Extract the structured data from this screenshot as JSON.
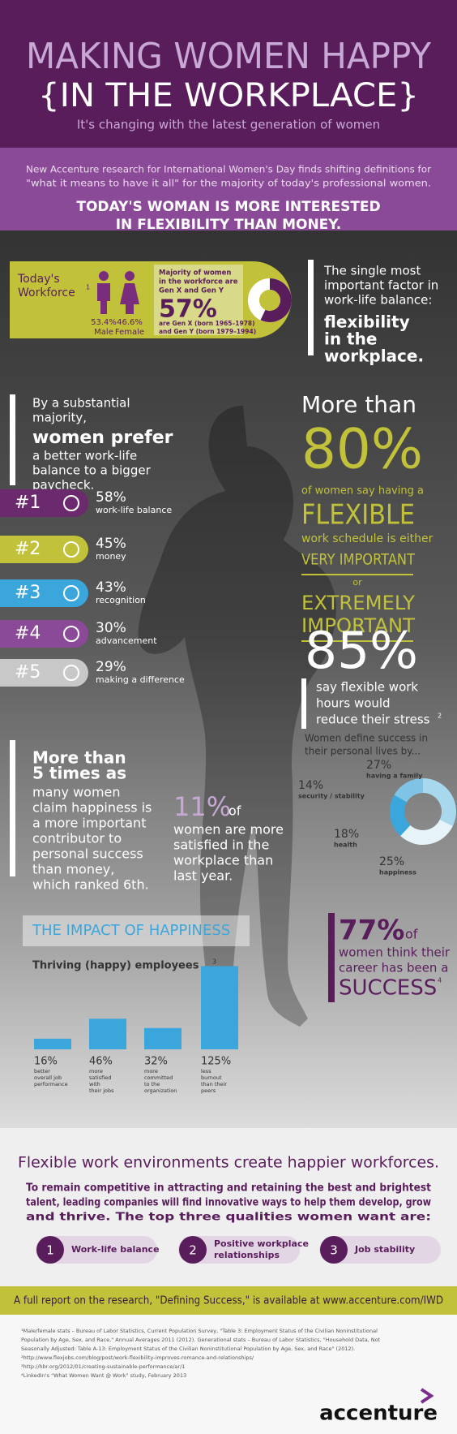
{
  "header": {
    "title": "MAKING WOMEN HAPPY",
    "title_line2": "{IN THE WORKPLACE}",
    "subtitle": "It's changing with the latest generation of women"
  },
  "intro": {
    "text_lines": [
      "New Accenture research for International Women's Day finds shifting definitions for",
      "\"what it means to have it all\" for the majority of today's professional women."
    ],
    "headline_lines": [
      "TODAY'S WOMAN IS MORE INTERESTED",
      "IN FLEXIBILITY THAN MONEY."
    ]
  },
  "workforce": {
    "label_lines": [
      "Today's",
      "Workforce"
    ],
    "footnote": "1",
    "male_share": "53.4%",
    "male": "Male",
    "female_share": "46.6%",
    "female": "Female",
    "majority_lines": [
      "Majority of women",
      "in the workforce are",
      "Gen X and Gen Y"
    ],
    "majority_value": 57,
    "majority_label": "57%",
    "generation_lines": [
      "are Gen X (born 1965–1978)",
      "and Gen Y (born 1979–1994)"
    ]
  },
  "flexibility_factor": {
    "lines": [
      "The single most",
      "important factor in",
      "work-life balance:"
    ],
    "emphasis_lines": [
      "flexibility",
      "in the",
      "workplace."
    ]
  },
  "preference": {
    "lines": [
      "By a substantial",
      "majority,"
    ],
    "emphasis": "women prefer",
    "rest_lines": [
      "a better work-life",
      "balance to a bigger",
      "paycheck."
    ]
  },
  "rankings": [
    {
      "rank": "#1",
      "value": "58%",
      "label": "work-life balance"
    },
    {
      "rank": "#2",
      "value": "45%",
      "label": "money"
    },
    {
      "rank": "#3",
      "value": "43%",
      "label": "recognition"
    },
    {
      "rank": "#4",
      "value": "30%",
      "label": "advancement"
    },
    {
      "rank": "#5",
      "value": "29%",
      "label": "making a difference"
    }
  ],
  "flexible_schedule": {
    "lead": "More than",
    "value": "80%",
    "line1": "of women say having a",
    "flexible": "FLEXIBLE",
    "line2": "work schedule is either",
    "very": "VERY IMPORTANT",
    "or": "or",
    "extremely_lines": [
      "EXTREMELY",
      "IMPORTANT"
    ]
  },
  "stress": {
    "value": "85%",
    "lines": [
      "say flexible work",
      "hours would",
      "reduce their stress"
    ],
    "footnote": "2"
  },
  "success_definition": {
    "title_lines": [
      "Women define success in",
      "their personal lives by..."
    ],
    "segments": [
      {
        "name": "having a family",
        "value": 27,
        "label": "27%"
      },
      {
        "name": "happiness",
        "value": 25,
        "label": "25%"
      },
      {
        "name": "health",
        "value": 18,
        "label": "18%"
      },
      {
        "name": "security / stability",
        "value": 14,
        "label": "14%"
      }
    ]
  },
  "happiness_vs_money": {
    "lines": [
      "More than",
      "5 times as",
      "many women",
      "claim happiness is",
      "a more important",
      "contributor to",
      "personal success",
      "than money,",
      "which ranked 6th."
    ]
  },
  "satisfaction": {
    "value": "11%",
    "of": "of",
    "lines": [
      "women are more",
      "satisfied in the",
      "workplace than",
      "last year."
    ]
  },
  "impact": {
    "title": "THE IMPACT OF HAPPINESS",
    "subtitle": "Thriving (happy) employees",
    "footnote": "3",
    "values": [
      16,
      46,
      32,
      125
    ],
    "value_labels": [
      "16%",
      "46%",
      "32%",
      "125%"
    ],
    "category_lines": [
      [
        "better",
        "overall job",
        "performance"
      ],
      [
        "more",
        "satisfied",
        "with",
        "their jobs"
      ],
      [
        "more",
        "committed",
        "to the",
        "organization"
      ],
      [
        "less",
        "burnout",
        "than their",
        "peers"
      ]
    ]
  },
  "career_success": {
    "value": "77%",
    "of": "of",
    "lines": [
      "women think their",
      "career has been a"
    ],
    "success": "SUCCESS",
    "footnote": "4"
  },
  "conclusion": {
    "title": "Flexible work environments create happier workforces.",
    "lines": [
      "To remain competitive in attracting and retaining the best and brightest",
      "talent, leading companies will find innovative ways to help them develop, grow",
      "and thrive. The top three qualities women want are:"
    ],
    "qualities": [
      {
        "number": "1",
        "lines": [
          "Work-life balance"
        ]
      },
      {
        "number": "2",
        "lines": [
          "Positive workplace",
          "relationships"
        ]
      },
      {
        "number": "3",
        "lines": [
          "Job stability"
        ]
      }
    ]
  },
  "report": "A full report on the research, \"Defining Success,\" is available at www.accenture.com/IWD",
  "footnotes": [
    "¹Male/female stats – Bureau of Labor Statistics, Current Population Survey, \"Table 3: Employment Status of the Civilian Noninstitutional",
    "Population by Age, Sex, and Race,\" Annual Averages 2011 (2012). Generational stats – Bureau of Labor Statistics, \"Household Data, Not",
    "Seasonally Adjusted: Table A-13: Employment Status of the Civilian Noninstitutional Population by Age, Sex, and Race\" (2012).",
    "²http://www.flexjobs.com/blog/post/work-flexibility-improves-romance-and-relationships/",
    "³http://hbr.org/2012/01/creating-sustainable-performance/ar/1",
    "⁴LinkedIn's \"What Women Want @ Work\" study, February 2013"
  ],
  "logo": "accenture"
}
